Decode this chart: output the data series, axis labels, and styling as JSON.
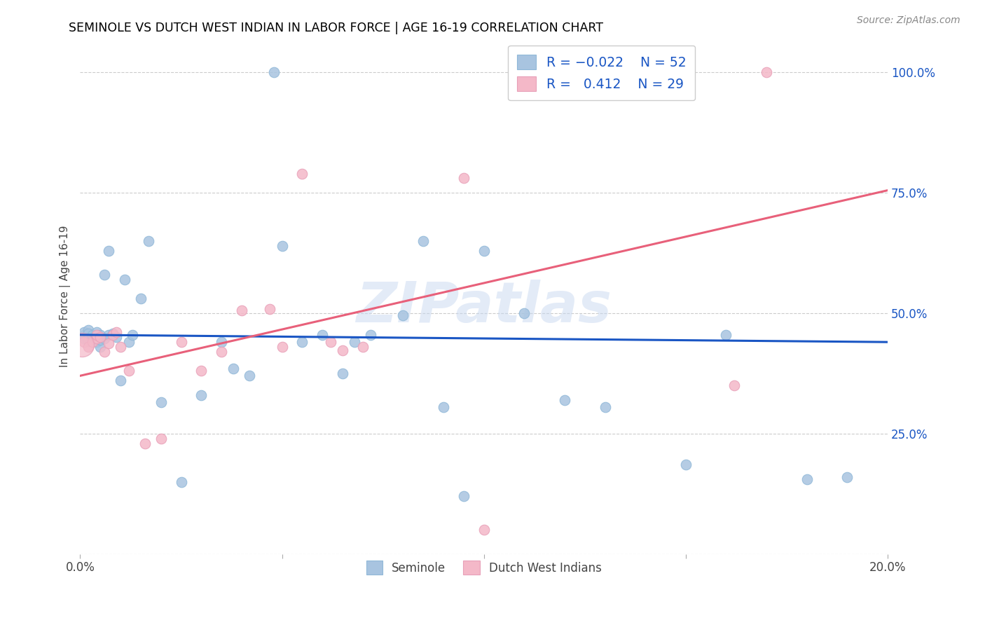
{
  "title": "SEMINOLE VS DUTCH WEST INDIAN IN LABOR FORCE | AGE 16-19 CORRELATION CHART",
  "source": "Source: ZipAtlas.com",
  "ylabel": "In Labor Force | Age 16-19",
  "watermark": "ZIPatlas",
  "legend_blue_label": "Seminole",
  "legend_pink_label": "Dutch West Indians",
  "blue_color": "#a8c4e0",
  "pink_color": "#f4b8c8",
  "line_blue_color": "#1a56c4",
  "line_pink_color": "#e8607a",
  "xmin": 0.0,
  "xmax": 0.2,
  "ymin": 0.0,
  "ymax": 1.07,
  "blue_line_y0": 0.455,
  "blue_line_y1": 0.44,
  "pink_line_y0": 0.37,
  "pink_line_y1": 0.755,
  "blue_x": [
    0.001,
    0.001,
    0.001,
    0.002,
    0.002,
    0.002,
    0.002,
    0.003,
    0.003,
    0.003,
    0.004,
    0.004,
    0.005,
    0.005,
    0.005,
    0.006,
    0.006,
    0.007,
    0.007,
    0.008,
    0.009,
    0.01,
    0.011,
    0.012,
    0.013,
    0.015,
    0.017,
    0.02,
    0.025,
    0.03,
    0.035,
    0.038,
    0.042,
    0.048,
    0.05,
    0.055,
    0.06,
    0.065,
    0.068,
    0.072,
    0.08,
    0.085,
    0.09,
    0.095,
    0.1,
    0.11,
    0.12,
    0.13,
    0.15,
    0.16,
    0.18,
    0.19
  ],
  "blue_y": [
    0.455,
    0.46,
    0.448,
    0.465,
    0.45,
    0.442,
    0.458,
    0.45,
    0.445,
    0.455,
    0.44,
    0.46,
    0.455,
    0.43,
    0.445,
    0.58,
    0.448,
    0.455,
    0.63,
    0.458,
    0.45,
    0.36,
    0.57,
    0.44,
    0.455,
    0.53,
    0.65,
    0.315,
    0.15,
    0.33,
    0.44,
    0.385,
    0.37,
    1.0,
    0.64,
    0.44,
    0.455,
    0.375,
    0.44,
    0.455,
    0.495,
    0.65,
    0.305,
    0.12,
    0.63,
    0.5,
    0.32,
    0.305,
    0.185,
    0.455,
    0.155,
    0.16
  ],
  "pink_x": [
    0.001,
    0.002,
    0.003,
    0.004,
    0.004,
    0.005,
    0.006,
    0.007,
    0.008,
    0.009,
    0.01,
    0.012,
    0.016,
    0.02,
    0.025,
    0.03,
    0.035,
    0.04,
    0.047,
    0.05,
    0.055,
    0.062,
    0.065,
    0.07,
    0.095,
    0.1,
    0.13,
    0.162,
    0.17
  ],
  "pink_y": [
    0.44,
    0.43,
    0.44,
    0.448,
    0.455,
    0.45,
    0.42,
    0.438,
    0.455,
    0.46,
    0.43,
    0.38,
    0.23,
    0.24,
    0.44,
    0.38,
    0.42,
    0.505,
    0.508,
    0.43,
    0.79,
    0.44,
    0.423,
    0.43,
    0.78,
    0.05,
    1.0,
    0.35,
    1.0
  ],
  "pink_large_x": [
    0.001
  ],
  "pink_large_y": [
    0.43
  ]
}
